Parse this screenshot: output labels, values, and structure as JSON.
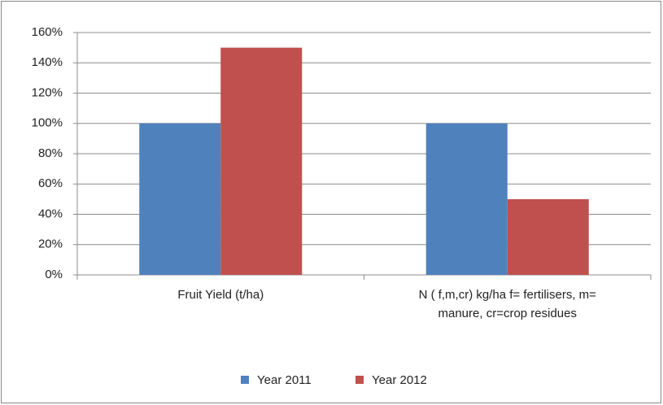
{
  "chart_data": {
    "type": "bar",
    "categories": [
      "Fruit Yield (t/ha)",
      "N ( f,m,cr) kg/ha f= fertilisers, m= manure, cr=crop residues"
    ],
    "series": [
      {
        "name": "Year 2011",
        "color": "#4f81bd",
        "values": [
          100,
          100
        ]
      },
      {
        "name": "Year 2012",
        "color": "#c0504d",
        "values": [
          150,
          50
        ]
      }
    ],
    "ylim": [
      0,
      160
    ],
    "yticks": [
      {
        "value": 0,
        "label": "0%"
      },
      {
        "value": 20,
        "label": "20%"
      },
      {
        "value": 40,
        "label": "40%"
      },
      {
        "value": 60,
        "label": "60%"
      },
      {
        "value": 80,
        "label": "80%"
      },
      {
        "value": 100,
        "label": "100%"
      },
      {
        "value": 120,
        "label": "120%"
      },
      {
        "value": 140,
        "label": "140%"
      },
      {
        "value": 160,
        "label": "160%"
      }
    ],
    "grid": true,
    "legend": "bottom"
  }
}
